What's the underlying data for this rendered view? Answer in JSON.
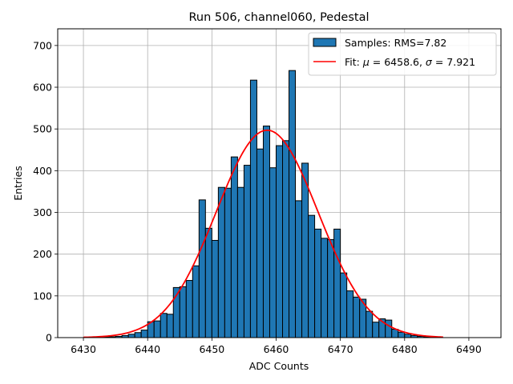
{
  "chart_data": {
    "type": "bar",
    "title": "Run 506, channel060, Pedestal",
    "xlabel": "ADC Counts",
    "ylabel": "Entries",
    "xlim": [
      6426,
      6495
    ],
    "ylim": [
      0,
      740
    ],
    "xticks": [
      6430,
      6440,
      6450,
      6460,
      6470,
      6480,
      6490
    ],
    "yticks": [
      0,
      100,
      200,
      300,
      400,
      500,
      600,
      700
    ],
    "grid": true,
    "legend_position": "top-right",
    "bin_width": 1,
    "colors": {
      "bar_fill": "#1f77b4",
      "bar_edge": "#000000",
      "fit_line": "#ff0000",
      "grid": "#b0b0b0"
    },
    "series": [
      {
        "name": "Samples: RMS=7.82",
        "kind": "histogram",
        "bins": [
          [
            6433,
            1
          ],
          [
            6434,
            2
          ],
          [
            6435,
            3
          ],
          [
            6436,
            5
          ],
          [
            6437,
            8
          ],
          [
            6438,
            12
          ],
          [
            6439,
            18
          ],
          [
            6440,
            38
          ],
          [
            6441,
            40
          ],
          [
            6442,
            58
          ],
          [
            6443,
            56
          ],
          [
            6444,
            120
          ],
          [
            6445,
            122
          ],
          [
            6446,
            137
          ],
          [
            6447,
            172
          ],
          [
            6448,
            330
          ],
          [
            6449,
            262
          ],
          [
            6450,
            233
          ],
          [
            6451,
            360
          ],
          [
            6452,
            358
          ],
          [
            6453,
            433
          ],
          [
            6454,
            360
          ],
          [
            6455,
            413
          ],
          [
            6456,
            617
          ],
          [
            6457,
            452
          ],
          [
            6458,
            507
          ],
          [
            6459,
            407
          ],
          [
            6460,
            460
          ],
          [
            6461,
            472
          ],
          [
            6462,
            640
          ],
          [
            6463,
            328
          ],
          [
            6464,
            418
          ],
          [
            6465,
            293
          ],
          [
            6466,
            260
          ],
          [
            6467,
            238
          ],
          [
            6468,
            235
          ],
          [
            6469,
            260
          ],
          [
            6470,
            155
          ],
          [
            6471,
            112
          ],
          [
            6472,
            97
          ],
          [
            6473,
            92
          ],
          [
            6474,
            63
          ],
          [
            6475,
            37
          ],
          [
            6476,
            45
          ],
          [
            6477,
            42
          ],
          [
            6478,
            20
          ],
          [
            6479,
            13
          ],
          [
            6480,
            8
          ],
          [
            6481,
            5
          ],
          [
            6482,
            3
          ],
          [
            6483,
            2
          ],
          [
            6484,
            1
          ]
        ]
      },
      {
        "name": "Fit: $\\mu$ = 6458.6, $\\sigma$ = 7.921",
        "kind": "gaussian",
        "mu": 6458.6,
        "sigma": 7.921,
        "amplitude": 497,
        "x_range": [
          6430,
          6486
        ]
      }
    ]
  }
}
